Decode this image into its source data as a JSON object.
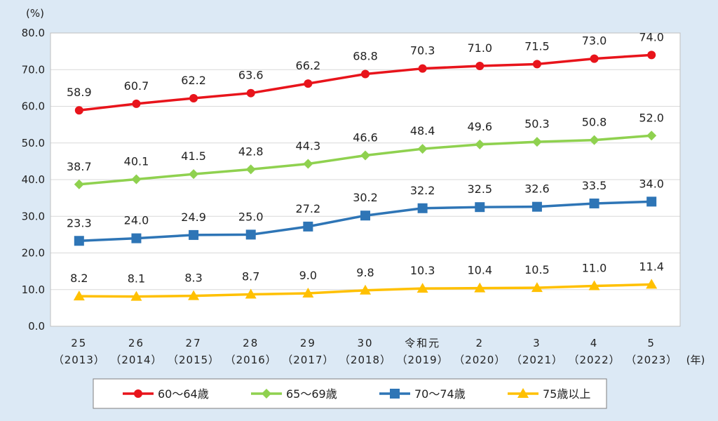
{
  "chart_data": {
    "type": "line",
    "y_unit": "(%)",
    "x_unit": "(年)",
    "ylim": [
      0,
      80
    ],
    "yticks": [
      "0.0",
      "10.0",
      "20.0",
      "30.0",
      "40.0",
      "50.0",
      "60.0",
      "70.0",
      "80.0"
    ],
    "grid": true,
    "legend_position": "bottom",
    "categories": [
      {
        "top": "25",
        "bottom": "（2013）"
      },
      {
        "top": "26",
        "bottom": "（2014）"
      },
      {
        "top": "27",
        "bottom": "（2015）"
      },
      {
        "top": "28",
        "bottom": "（2016）"
      },
      {
        "top": "29",
        "bottom": "（2017）"
      },
      {
        "top": "30",
        "bottom": "（2018）"
      },
      {
        "top": "令和元",
        "bottom": "（2019）"
      },
      {
        "top": "2",
        "bottom": "（2020）"
      },
      {
        "top": "3",
        "bottom": "（2021）"
      },
      {
        "top": "4",
        "bottom": "（2022）"
      },
      {
        "top": "5",
        "bottom": "（2023）"
      }
    ],
    "series": [
      {
        "name": "60～64歳",
        "color": "#e8141b",
        "marker": "circle",
        "values": [
          58.9,
          60.7,
          62.2,
          63.6,
          66.2,
          68.8,
          70.3,
          71.0,
          71.5,
          73.0,
          74.0
        ],
        "labels": [
          "58.9",
          "60.7",
          "62.2",
          "63.6",
          "66.2",
          "68.8",
          "70.3",
          "71.0",
          "71.5",
          "73.0",
          "74.0"
        ]
      },
      {
        "name": "65～69歳",
        "color": "#8fd14f",
        "marker": "diamond",
        "values": [
          38.7,
          40.1,
          41.5,
          42.8,
          44.3,
          46.6,
          48.4,
          49.6,
          50.3,
          50.8,
          52.0
        ],
        "labels": [
          "38.7",
          "40.1",
          "41.5",
          "42.8",
          "44.3",
          "46.6",
          "48.4",
          "49.6",
          "50.3",
          "50.8",
          "52.0"
        ]
      },
      {
        "name": "70～74歳",
        "color": "#2e75b6",
        "marker": "square",
        "values": [
          23.3,
          24.0,
          24.9,
          25.0,
          27.2,
          30.2,
          32.2,
          32.5,
          32.6,
          33.5,
          34.0
        ],
        "labels": [
          "23.3",
          "24.0",
          "24.9",
          "25.0",
          "27.2",
          "30.2",
          "32.2",
          "32.5",
          "32.6",
          "33.5",
          "34.0"
        ]
      },
      {
        "name": "75歳以上",
        "color": "#ffc000",
        "marker": "triangle",
        "values": [
          8.2,
          8.1,
          8.3,
          8.7,
          9.0,
          9.8,
          10.3,
          10.4,
          10.5,
          11.0,
          11.4
        ],
        "labels": [
          "8.2",
          "8.1",
          "8.3",
          "8.7",
          "9.0",
          "9.8",
          "10.3",
          "10.4",
          "10.5",
          "11.0",
          "11.4"
        ]
      }
    ]
  }
}
